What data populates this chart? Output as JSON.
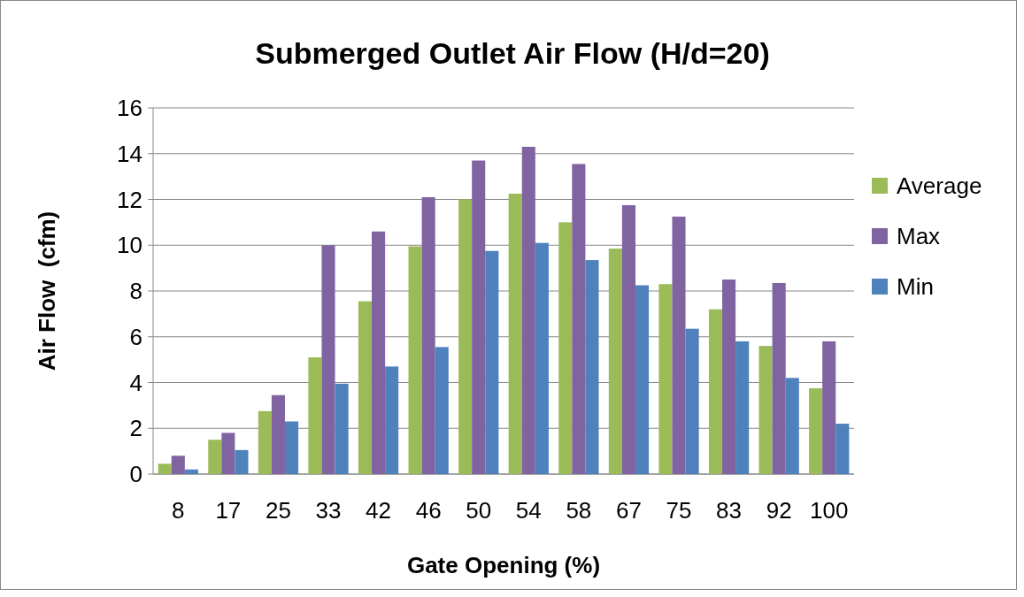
{
  "chart_data": {
    "type": "bar",
    "title": "Submerged Outlet Air Flow (H/d=20)",
    "xlabel": "Gate Opening (%)",
    "ylabel": "Air Flow  (cfm)",
    "categories": [
      "8",
      "17",
      "25",
      "33",
      "42",
      "46",
      "50",
      "54",
      "58",
      "67",
      "75",
      "83",
      "92",
      "100"
    ],
    "series": [
      {
        "name": "Average",
        "color": "#9bbb59",
        "values": [
          0.45,
          1.5,
          2.75,
          5.1,
          7.55,
          9.95,
          12.0,
          12.25,
          11.0,
          9.85,
          8.3,
          7.2,
          5.6,
          3.75
        ]
      },
      {
        "name": "Max",
        "color": "#8064a2",
        "values": [
          0.8,
          1.8,
          3.45,
          10.0,
          10.6,
          12.1,
          13.7,
          14.3,
          13.55,
          11.75,
          11.25,
          8.5,
          8.35,
          5.8
        ]
      },
      {
        "name": "Min",
        "color": "#4f81bd",
        "values": [
          0.2,
          1.05,
          2.3,
          3.95,
          4.7,
          5.55,
          9.75,
          10.1,
          9.35,
          8.25,
          6.35,
          5.8,
          4.2,
          2.2
        ]
      }
    ],
    "ylim": [
      0,
      16
    ],
    "yticks": [
      0,
      2,
      4,
      6,
      8,
      10,
      12,
      14,
      16
    ],
    "grid": "y",
    "legend": "right"
  }
}
